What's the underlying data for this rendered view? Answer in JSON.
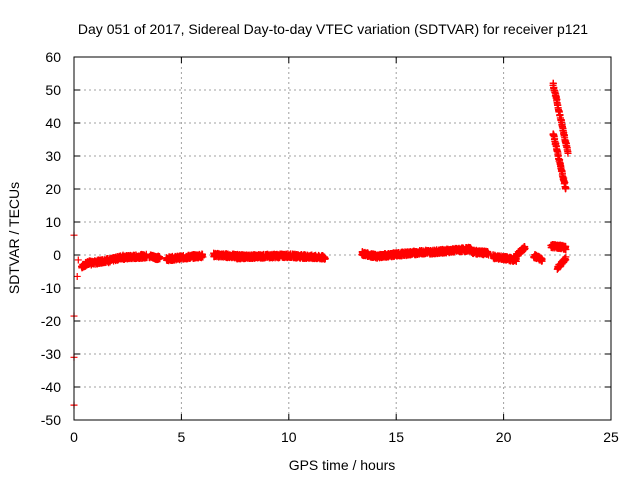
{
  "chart_data": {
    "type": "scatter",
    "title": "Day 051 of 2017, Sidereal Day-to-day VTEC variation (SDTVAR) for receiver p121",
    "xlabel": "GPS time / hours",
    "ylabel": "SDTVAR / TECUs",
    "xlim": [
      0,
      25
    ],
    "ylim": [
      -50,
      60
    ],
    "xticks": [
      "0",
      "5",
      "10",
      "15",
      "20",
      "25"
    ],
    "yticks": [
      "-50",
      "-40",
      "-30",
      "-20",
      "-10",
      "0",
      "10",
      "20",
      "30",
      "40",
      "50",
      "60"
    ],
    "grid": true,
    "marker": "plus",
    "color": "#ff0000",
    "segments": [
      {
        "x_start": 0.35,
        "x_end": 0.8,
        "y_start": -3.5,
        "y_end": -2.0
      },
      {
        "x_start": 0.8,
        "x_end": 1.6,
        "y_start": -2.5,
        "y_end": -1.5
      },
      {
        "x_start": 1.6,
        "x_end": 2.3,
        "y_start": -1.8,
        "y_end": -0.5
      },
      {
        "x_start": 2.3,
        "x_end": 3.4,
        "y_start": -0.8,
        "y_end": -0.3
      },
      {
        "x_start": 3.5,
        "x_end": 4.0,
        "y_start": -0.3,
        "y_end": -1.0
      },
      {
        "x_start": 4.3,
        "x_end": 6.0,
        "y_start": -1.2,
        "y_end": -0.2
      },
      {
        "x_start": 6.5,
        "x_end": 8.0,
        "y_start": 0.0,
        "y_end": -0.5
      },
      {
        "x_start": 7.5,
        "x_end": 10.0,
        "y_start": -0.6,
        "y_end": -0.2
      },
      {
        "x_start": 10.0,
        "x_end": 11.7,
        "y_start": -0.2,
        "y_end": -0.8
      },
      {
        "x_start": 13.4,
        "x_end": 14.2,
        "y_start": 0.5,
        "y_end": -0.6
      },
      {
        "x_start": 14.2,
        "x_end": 16.5,
        "y_start": -0.3,
        "y_end": 1.0
      },
      {
        "x_start": 16.5,
        "x_end": 18.5,
        "y_start": 0.8,
        "y_end": 1.8
      },
      {
        "x_start": 18.5,
        "x_end": 19.3,
        "y_start": 1.0,
        "y_end": 0.5
      },
      {
        "x_start": 19.5,
        "x_end": 20.6,
        "y_start": -0.5,
        "y_end": -1.5
      },
      {
        "x_start": 20.6,
        "x_end": 21.0,
        "y_start": 0.0,
        "y_end": 2.2
      },
      {
        "x_start": 21.4,
        "x_end": 21.8,
        "y_start": -0.2,
        "y_end": -1.5
      },
      {
        "x_start": 22.2,
        "x_end": 22.9,
        "y_start": 2.8,
        "y_end": 2.2
      },
      {
        "x_start": 22.3,
        "x_end": 23.0,
        "y_start": 52.0,
        "y_end": 31.0
      },
      {
        "x_start": 22.3,
        "x_end": 22.9,
        "y_start": 37.0,
        "y_end": 20.0
      },
      {
        "x_start": 22.5,
        "x_end": 22.9,
        "y_start": -4.0,
        "y_end": -1.0
      }
    ],
    "isolated_points": [
      {
        "x": 0.0,
        "y": 6.0
      },
      {
        "x": 0.0,
        "y": -18.5
      },
      {
        "x": 0.0,
        "y": -31.0
      },
      {
        "x": 0.0,
        "y": -45.5
      },
      {
        "x": 0.15,
        "y": -6.5
      },
      {
        "x": 0.2,
        "y": -1.5
      }
    ]
  }
}
